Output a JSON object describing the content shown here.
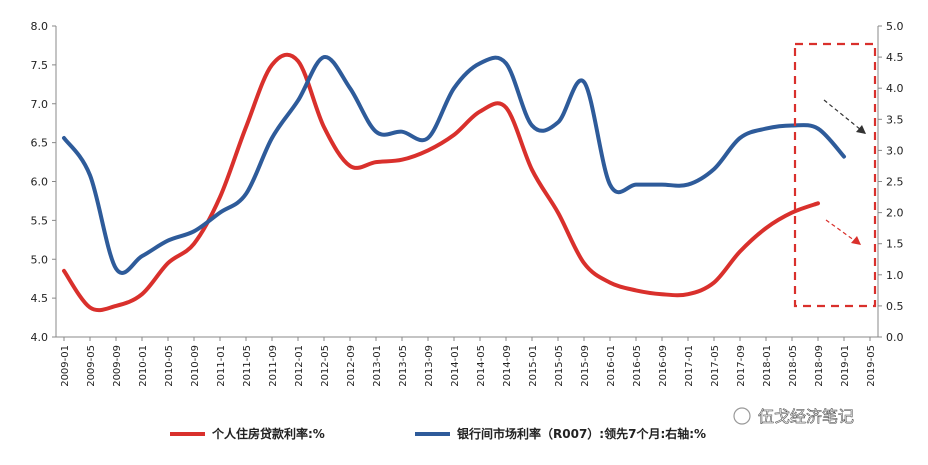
{
  "chart_data": {
    "type": "line",
    "x": [
      "2009-01",
      "2009-05",
      "2009-09",
      "2010-01",
      "2010-05",
      "2010-09",
      "2011-01",
      "2011-05",
      "2011-09",
      "2012-01",
      "2012-05",
      "2012-09",
      "2013-01",
      "2013-05",
      "2013-09",
      "2014-01",
      "2014-05",
      "2014-09",
      "2015-01",
      "2015-05",
      "2015-09",
      "2016-01",
      "2016-05",
      "2016-09",
      "2017-01",
      "2017-05",
      "2017-09",
      "2018-01",
      "2018-05",
      "2018-09",
      "2019-01",
      "2019-05"
    ],
    "y_left_lim": [
      4.0,
      8.0
    ],
    "y_left_ticks": [
      "4.0",
      "4.5",
      "5.0",
      "5.5",
      "6.0",
      "6.5",
      "7.0",
      "7.5",
      "8.0"
    ],
    "y_right_lim": [
      0.0,
      5.0
    ],
    "y_right_ticks": [
      "0.0",
      "0.5",
      "1.0",
      "1.5",
      "2.0",
      "2.5",
      "3.0",
      "3.5",
      "4.0",
      "4.5",
      "5.0"
    ],
    "series": [
      {
        "name": "个人住房贷款利率:%",
        "axis": "left",
        "color": "#d9302c",
        "values": [
          4.85,
          4.38,
          4.4,
          4.55,
          4.95,
          5.2,
          5.8,
          6.7,
          7.5,
          7.55,
          6.7,
          6.2,
          6.25,
          6.28,
          6.4,
          6.6,
          6.9,
          6.95,
          6.15,
          5.6,
          4.95,
          4.7,
          4.6,
          4.55,
          4.55,
          4.7,
          5.1,
          5.4,
          5.6,
          5.72,
          null,
          null
        ]
      },
      {
        "name": "银行间市场利率（R007）:领先7个月:右轴:%",
        "axis": "right",
        "color": "#2e5b9a",
        "values": [
          3.2,
          2.6,
          1.1,
          1.3,
          1.55,
          1.7,
          2.0,
          2.3,
          3.2,
          3.8,
          4.5,
          4.0,
          3.3,
          3.3,
          3.2,
          4.0,
          4.4,
          4.4,
          3.4,
          3.45,
          4.1,
          2.45,
          2.45,
          2.45,
          2.45,
          2.7,
          3.2,
          3.35,
          3.4,
          3.35,
          2.9,
          null
        ]
      }
    ],
    "legend_position": "bottom",
    "grid": false,
    "annotations": [
      "dashed-red-box-right",
      "trend-arrow-black-down",
      "trend-arrow-red-down"
    ]
  },
  "watermark": "伍戈经济笔记",
  "colors": {
    "red": "#d9302c",
    "blue": "#2e5b9a",
    "axis": "#888888"
  }
}
